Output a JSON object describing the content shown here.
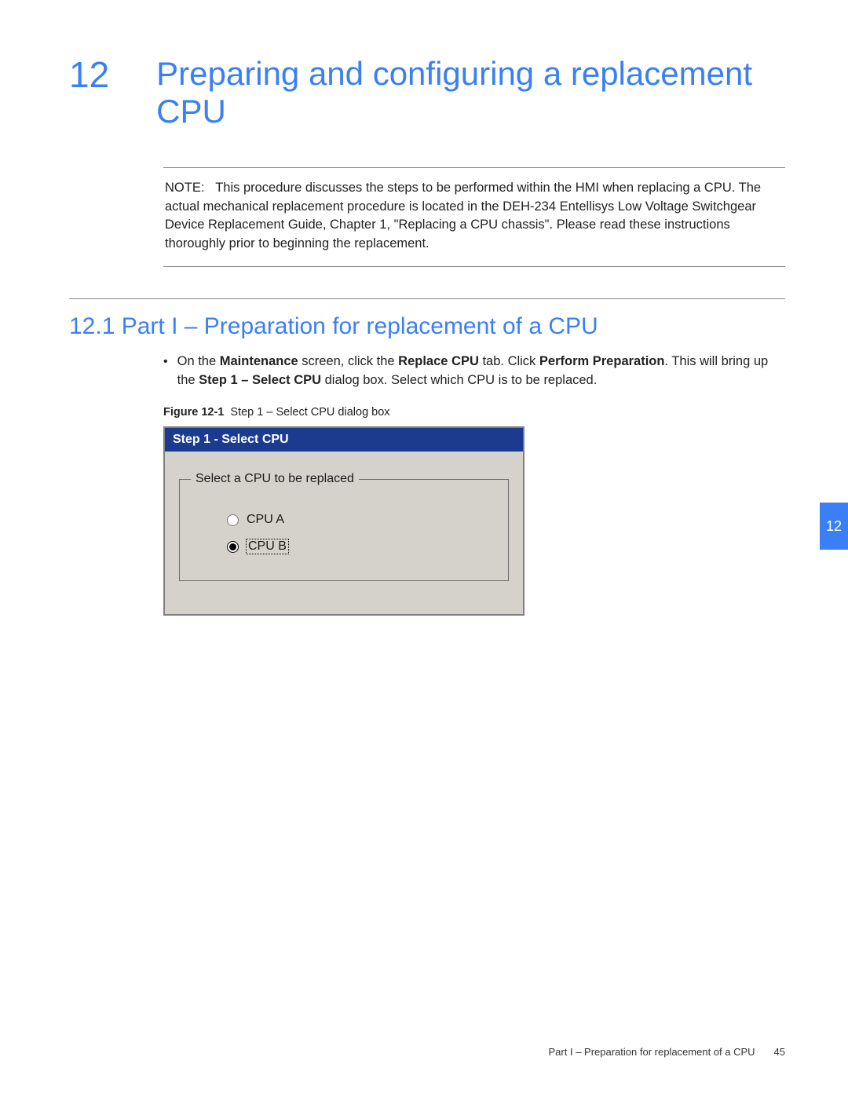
{
  "chapter": {
    "number": "12",
    "title": "Preparing and configuring a replacement CPU"
  },
  "note": {
    "label": "NOTE:",
    "text": "This procedure discusses the steps to be performed within the HMI when replacing a CPU. The actual mechanical replacement procedure is located in the DEH-234 Entellisys Low Voltage Switchgear Device Replacement Guide, Chapter 1, \"Replacing a CPU chassis\". Please read these instructions thoroughly prior to beginning the replacement."
  },
  "section": {
    "heading": "12.1 Part I – Preparation for replacement of a CPU"
  },
  "bullet": {
    "pre": "On the ",
    "b1": "Maintenance",
    "mid1": " screen, click the ",
    "b2": "Replace CPU",
    "mid2": " tab. Click ",
    "b3": "Perform Preparation",
    "mid3": ". This will bring up the ",
    "b4": "Step 1 – Select CPU",
    "post": " dialog box. Select which CPU is to be replaced."
  },
  "figure": {
    "label": "Figure 12-1",
    "caption": "Step 1 – Select CPU dialog box"
  },
  "dialog": {
    "title": "Step 1 - Select CPU",
    "legend": "Select a CPU to be replaced",
    "options": {
      "a": "CPU A",
      "b": "CPU B"
    },
    "selected": "b"
  },
  "sidetab": {
    "label": "12"
  },
  "footer": {
    "text": "Part I – Preparation for replacement of a CPU",
    "page": "45"
  },
  "colors": {
    "accent_blue": "#3a7ff5",
    "titlebar_blue": "#1b3b8f",
    "dialog_bg": "#d5d2cb",
    "rule_gray": "#888888",
    "text": "#222222"
  }
}
